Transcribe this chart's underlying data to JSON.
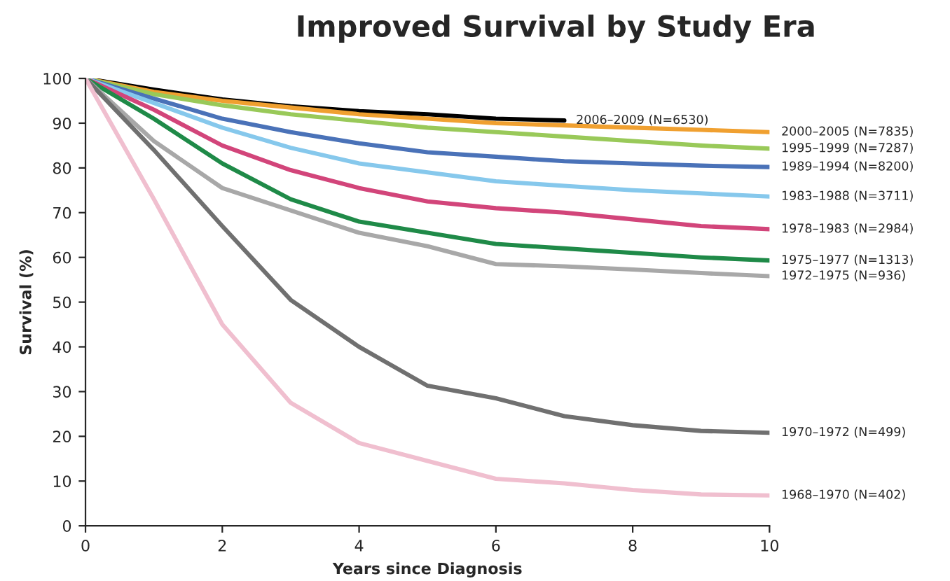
{
  "chart_data": {
    "type": "line",
    "title": "Improved Survival by Study Era",
    "xlabel": "Years since Diagnosis",
    "ylabel": "Survival (%)",
    "xlim": [
      0,
      10
    ],
    "xticks": [
      0,
      2,
      4,
      6,
      8,
      10
    ],
    "ylim": [
      0,
      100
    ],
    "yticks": [
      0,
      10,
      20,
      30,
      40,
      50,
      60,
      70,
      80,
      90,
      100
    ],
    "grid": false,
    "legend": false,
    "marker": "none",
    "line_style": "solid",
    "series": [
      {
        "name": "2006–2009 (N=6530)",
        "color": "#000000",
        "x": [
          0,
          1,
          2,
          3,
          4,
          5,
          6,
          7
        ],
        "values": [
          100,
          97.5,
          95.3,
          93.8,
          92.7,
          92,
          91,
          90.6
        ]
      },
      {
        "name": "2000–2005 (N=7835)",
        "color": "#f0a030",
        "x": [
          0,
          1,
          2,
          3,
          4,
          5,
          6,
          7,
          8,
          9,
          10
        ],
        "values": [
          100,
          97,
          95,
          93.5,
          92,
          91,
          90,
          89.5,
          89,
          88.5,
          88
        ]
      },
      {
        "name": "1995–1999 (N=7287)",
        "color": "#99c959",
        "x": [
          0,
          1,
          2,
          3,
          4,
          5,
          6,
          7,
          8,
          9,
          10
        ],
        "values": [
          100,
          96.5,
          94,
          92,
          90.5,
          89,
          88,
          87,
          86,
          85,
          84.3
        ]
      },
      {
        "name": "1989–1994 (N=8200)",
        "color": "#4a72b8",
        "x": [
          0,
          1,
          2,
          3,
          4,
          5,
          6,
          7,
          8,
          9,
          10
        ],
        "values": [
          100,
          95.5,
          91,
          88,
          85.5,
          83.5,
          82.5,
          81.5,
          81,
          80.5,
          80.2
        ]
      },
      {
        "name": "1983–1988 (N=3711)",
        "color": "#86c8ec",
        "x": [
          0,
          1,
          2,
          3,
          4,
          5,
          6,
          7,
          8,
          9,
          10
        ],
        "values": [
          100,
          94.5,
          89,
          84.5,
          81,
          79,
          77,
          76,
          75,
          74.3,
          73.6
        ]
      },
      {
        "name": "1978–1983 (N=2984)",
        "color": "#d2457a",
        "x": [
          0,
          1,
          2,
          3,
          4,
          5,
          6,
          7,
          8,
          9,
          10
        ],
        "values": [
          100,
          93,
          85,
          79.5,
          75.5,
          72.5,
          71,
          70,
          68.5,
          67,
          66.3
        ]
      },
      {
        "name": "1975–1977 (N=1313)",
        "color": "#1f8a48",
        "x": [
          0,
          1,
          2,
          3,
          4,
          5,
          6,
          7,
          8,
          9,
          10
        ],
        "values": [
          100,
          91,
          81,
          73,
          68,
          65.5,
          63,
          62,
          61,
          60,
          59.3
        ]
      },
      {
        "name": "1972–1975 (N=936)",
        "color": "#a8a8a8",
        "x": [
          0,
          1,
          2,
          3,
          4,
          5,
          6,
          7,
          8,
          9,
          10
        ],
        "values": [
          100,
          86,
          75.5,
          70.5,
          65.5,
          62.5,
          58.5,
          58,
          57.3,
          56.5,
          55.8
        ]
      },
      {
        "name": "1970–1972 (N=499)",
        "color": "#707070",
        "x": [
          0,
          1,
          2,
          3,
          4,
          5,
          6,
          7,
          8,
          9,
          10
        ],
        "values": [
          100,
          84,
          67,
          50.5,
          40,
          31.3,
          28.5,
          24.5,
          22.5,
          21.2,
          20.8
        ]
      },
      {
        "name": "1968–1970 (N=402)",
        "color": "#f0bfcf",
        "x": [
          0,
          1,
          2,
          3,
          4,
          5,
          6,
          7,
          8,
          9,
          10
        ],
        "values": [
          100,
          73,
          45,
          27.5,
          18.5,
          14.5,
          10.5,
          9.5,
          8,
          7,
          6.8
        ]
      }
    ]
  }
}
